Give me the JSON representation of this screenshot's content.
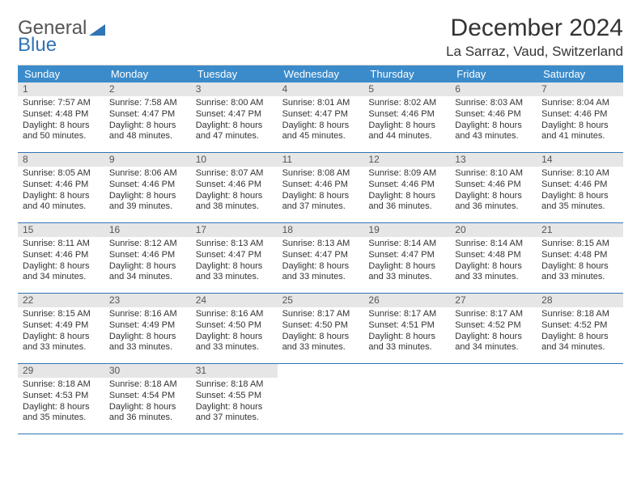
{
  "brand": {
    "general": "General",
    "blue": "Blue"
  },
  "title": {
    "month": "December 2024",
    "location": "La Sarraz, Vaud, Switzerland"
  },
  "colors": {
    "header_bar": "#3b8bca",
    "header_text": "#ffffff",
    "week_divider": "#2f74b5",
    "daynum_bg": "#e6e6e6",
    "body_text": "#333333",
    "logo_blue": "#2f74b5",
    "background": "#ffffff"
  },
  "layout": {
    "columns": 7,
    "weeks": 5,
    "cell_fontsize_pt": 8,
    "dow_fontsize_pt": 10,
    "title_fontsize_pt": 22,
    "location_fontsize_pt": 13
  },
  "dow": [
    "Sunday",
    "Monday",
    "Tuesday",
    "Wednesday",
    "Thursday",
    "Friday",
    "Saturday"
  ],
  "weeks": [
    [
      {
        "n": "1",
        "sr": "Sunrise: 7:57 AM",
        "ss": "Sunset: 4:48 PM",
        "d1": "Daylight: 8 hours",
        "d2": "and 50 minutes."
      },
      {
        "n": "2",
        "sr": "Sunrise: 7:58 AM",
        "ss": "Sunset: 4:47 PM",
        "d1": "Daylight: 8 hours",
        "d2": "and 48 minutes."
      },
      {
        "n": "3",
        "sr": "Sunrise: 8:00 AM",
        "ss": "Sunset: 4:47 PM",
        "d1": "Daylight: 8 hours",
        "d2": "and 47 minutes."
      },
      {
        "n": "4",
        "sr": "Sunrise: 8:01 AM",
        "ss": "Sunset: 4:47 PM",
        "d1": "Daylight: 8 hours",
        "d2": "and 45 minutes."
      },
      {
        "n": "5",
        "sr": "Sunrise: 8:02 AM",
        "ss": "Sunset: 4:46 PM",
        "d1": "Daylight: 8 hours",
        "d2": "and 44 minutes."
      },
      {
        "n": "6",
        "sr": "Sunrise: 8:03 AM",
        "ss": "Sunset: 4:46 PM",
        "d1": "Daylight: 8 hours",
        "d2": "and 43 minutes."
      },
      {
        "n": "7",
        "sr": "Sunrise: 8:04 AM",
        "ss": "Sunset: 4:46 PM",
        "d1": "Daylight: 8 hours",
        "d2": "and 41 minutes."
      }
    ],
    [
      {
        "n": "8",
        "sr": "Sunrise: 8:05 AM",
        "ss": "Sunset: 4:46 PM",
        "d1": "Daylight: 8 hours",
        "d2": "and 40 minutes."
      },
      {
        "n": "9",
        "sr": "Sunrise: 8:06 AM",
        "ss": "Sunset: 4:46 PM",
        "d1": "Daylight: 8 hours",
        "d2": "and 39 minutes."
      },
      {
        "n": "10",
        "sr": "Sunrise: 8:07 AM",
        "ss": "Sunset: 4:46 PM",
        "d1": "Daylight: 8 hours",
        "d2": "and 38 minutes."
      },
      {
        "n": "11",
        "sr": "Sunrise: 8:08 AM",
        "ss": "Sunset: 4:46 PM",
        "d1": "Daylight: 8 hours",
        "d2": "and 37 minutes."
      },
      {
        "n": "12",
        "sr": "Sunrise: 8:09 AM",
        "ss": "Sunset: 4:46 PM",
        "d1": "Daylight: 8 hours",
        "d2": "and 36 minutes."
      },
      {
        "n": "13",
        "sr": "Sunrise: 8:10 AM",
        "ss": "Sunset: 4:46 PM",
        "d1": "Daylight: 8 hours",
        "d2": "and 36 minutes."
      },
      {
        "n": "14",
        "sr": "Sunrise: 8:10 AM",
        "ss": "Sunset: 4:46 PM",
        "d1": "Daylight: 8 hours",
        "d2": "and 35 minutes."
      }
    ],
    [
      {
        "n": "15",
        "sr": "Sunrise: 8:11 AM",
        "ss": "Sunset: 4:46 PM",
        "d1": "Daylight: 8 hours",
        "d2": "and 34 minutes."
      },
      {
        "n": "16",
        "sr": "Sunrise: 8:12 AM",
        "ss": "Sunset: 4:46 PM",
        "d1": "Daylight: 8 hours",
        "d2": "and 34 minutes."
      },
      {
        "n": "17",
        "sr": "Sunrise: 8:13 AM",
        "ss": "Sunset: 4:47 PM",
        "d1": "Daylight: 8 hours",
        "d2": "and 33 minutes."
      },
      {
        "n": "18",
        "sr": "Sunrise: 8:13 AM",
        "ss": "Sunset: 4:47 PM",
        "d1": "Daylight: 8 hours",
        "d2": "and 33 minutes."
      },
      {
        "n": "19",
        "sr": "Sunrise: 8:14 AM",
        "ss": "Sunset: 4:47 PM",
        "d1": "Daylight: 8 hours",
        "d2": "and 33 minutes."
      },
      {
        "n": "20",
        "sr": "Sunrise: 8:14 AM",
        "ss": "Sunset: 4:48 PM",
        "d1": "Daylight: 8 hours",
        "d2": "and 33 minutes."
      },
      {
        "n": "21",
        "sr": "Sunrise: 8:15 AM",
        "ss": "Sunset: 4:48 PM",
        "d1": "Daylight: 8 hours",
        "d2": "and 33 minutes."
      }
    ],
    [
      {
        "n": "22",
        "sr": "Sunrise: 8:15 AM",
        "ss": "Sunset: 4:49 PM",
        "d1": "Daylight: 8 hours",
        "d2": "and 33 minutes."
      },
      {
        "n": "23",
        "sr": "Sunrise: 8:16 AM",
        "ss": "Sunset: 4:49 PM",
        "d1": "Daylight: 8 hours",
        "d2": "and 33 minutes."
      },
      {
        "n": "24",
        "sr": "Sunrise: 8:16 AM",
        "ss": "Sunset: 4:50 PM",
        "d1": "Daylight: 8 hours",
        "d2": "and 33 minutes."
      },
      {
        "n": "25",
        "sr": "Sunrise: 8:17 AM",
        "ss": "Sunset: 4:50 PM",
        "d1": "Daylight: 8 hours",
        "d2": "and 33 minutes."
      },
      {
        "n": "26",
        "sr": "Sunrise: 8:17 AM",
        "ss": "Sunset: 4:51 PM",
        "d1": "Daylight: 8 hours",
        "d2": "and 33 minutes."
      },
      {
        "n": "27",
        "sr": "Sunrise: 8:17 AM",
        "ss": "Sunset: 4:52 PM",
        "d1": "Daylight: 8 hours",
        "d2": "and 34 minutes."
      },
      {
        "n": "28",
        "sr": "Sunrise: 8:18 AM",
        "ss": "Sunset: 4:52 PM",
        "d1": "Daylight: 8 hours",
        "d2": "and 34 minutes."
      }
    ],
    [
      {
        "n": "29",
        "sr": "Sunrise: 8:18 AM",
        "ss": "Sunset: 4:53 PM",
        "d1": "Daylight: 8 hours",
        "d2": "and 35 minutes."
      },
      {
        "n": "30",
        "sr": "Sunrise: 8:18 AM",
        "ss": "Sunset: 4:54 PM",
        "d1": "Daylight: 8 hours",
        "d2": "and 36 minutes."
      },
      {
        "n": "31",
        "sr": "Sunrise: 8:18 AM",
        "ss": "Sunset: 4:55 PM",
        "d1": "Daylight: 8 hours",
        "d2": "and 37 minutes."
      },
      null,
      null,
      null,
      null
    ]
  ]
}
